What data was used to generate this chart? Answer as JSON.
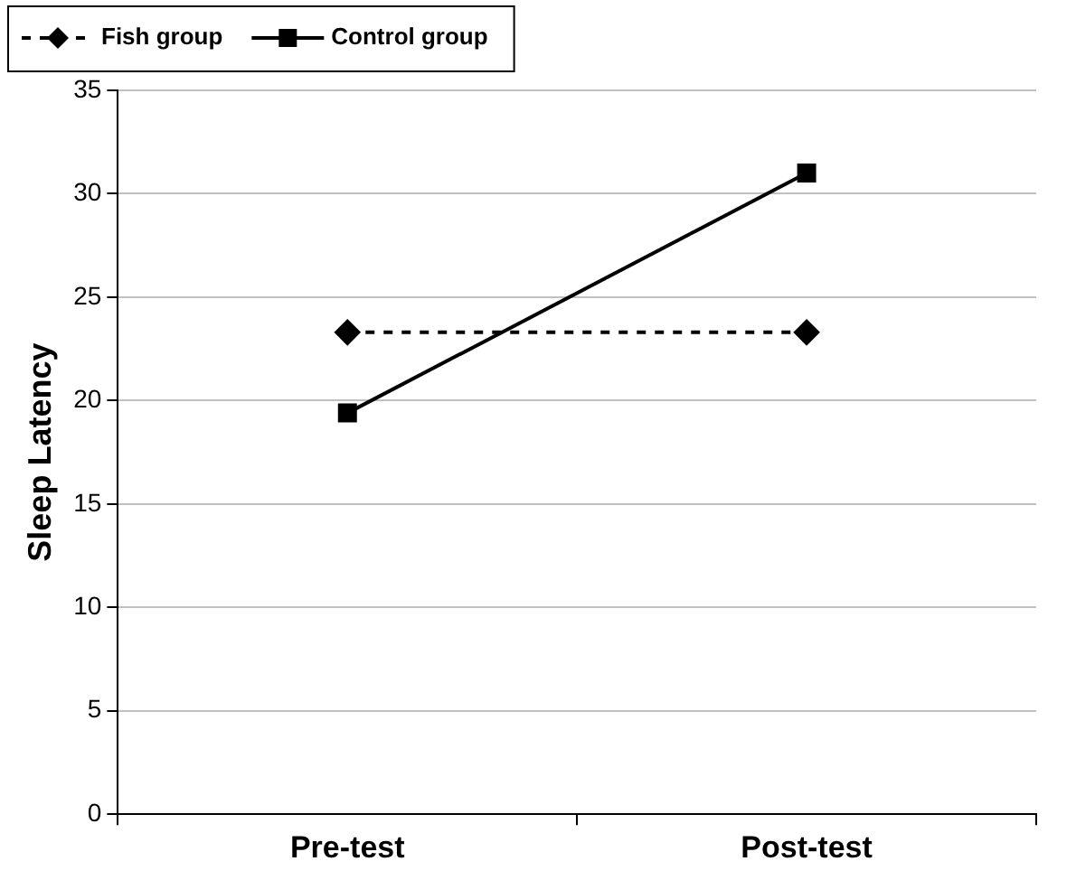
{
  "chart_data": {
    "type": "line",
    "ylabel": "Sleep Latency",
    "categories": [
      "Pre-test",
      "Post-test"
    ],
    "series": [
      {
        "name": "Fish group",
        "color": "#000000",
        "values": [
          23.3,
          23.3
        ],
        "marker": "diamond",
        "line_style": "dashed"
      },
      {
        "name": "Control group",
        "color": "#000000",
        "values": [
          19.4,
          31
        ],
        "marker": "square",
        "line_style": "solid"
      }
    ],
    "ylim": [
      0,
      35
    ],
    "yticks": [
      0,
      5,
      10,
      15,
      20,
      25,
      30,
      35
    ],
    "grid": "y",
    "legend": "top left"
  }
}
